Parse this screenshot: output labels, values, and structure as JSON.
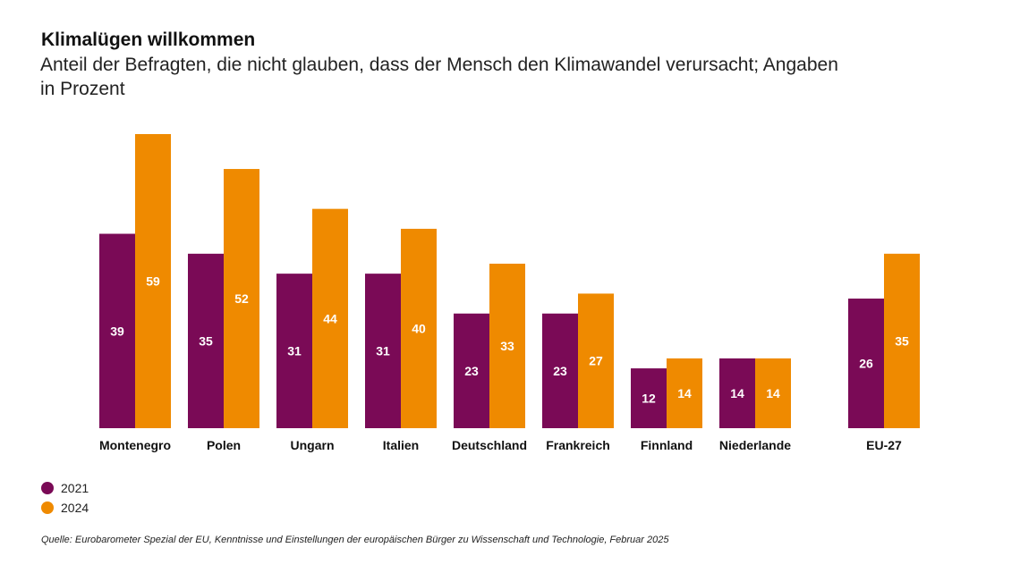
{
  "chart_data": {
    "type": "bar",
    "title": "Klimalügen willkommen",
    "subtitle": "Anteil der Befragten, die nicht glauben, dass der Mensch den Klimawandel verursacht; Angaben in Prozent",
    "categories": [
      "Montenegro",
      "Polen",
      "Ungarn",
      "Italien",
      "Deutschland",
      "Frankreich",
      "Finnland",
      "Niederlande",
      "EU-27"
    ],
    "series": [
      {
        "name": "2021",
        "color": "#7a0a56",
        "values": [
          39,
          35,
          31,
          31,
          23,
          23,
          12,
          14,
          26
        ]
      },
      {
        "name": "2024",
        "color": "#ef8a00",
        "values": [
          59,
          52,
          44,
          40,
          33,
          27,
          14,
          14,
          35
        ]
      }
    ],
    "ylim": [
      0,
      60
    ],
    "grid": false,
    "legend_position": "bottom-left",
    "source": "Quelle: Eurobarometer Spezial der EU, Kenntnisse und Einstellungen der europäischen Bürger zu Wissenschaft und Technologie, Februar 2025"
  }
}
